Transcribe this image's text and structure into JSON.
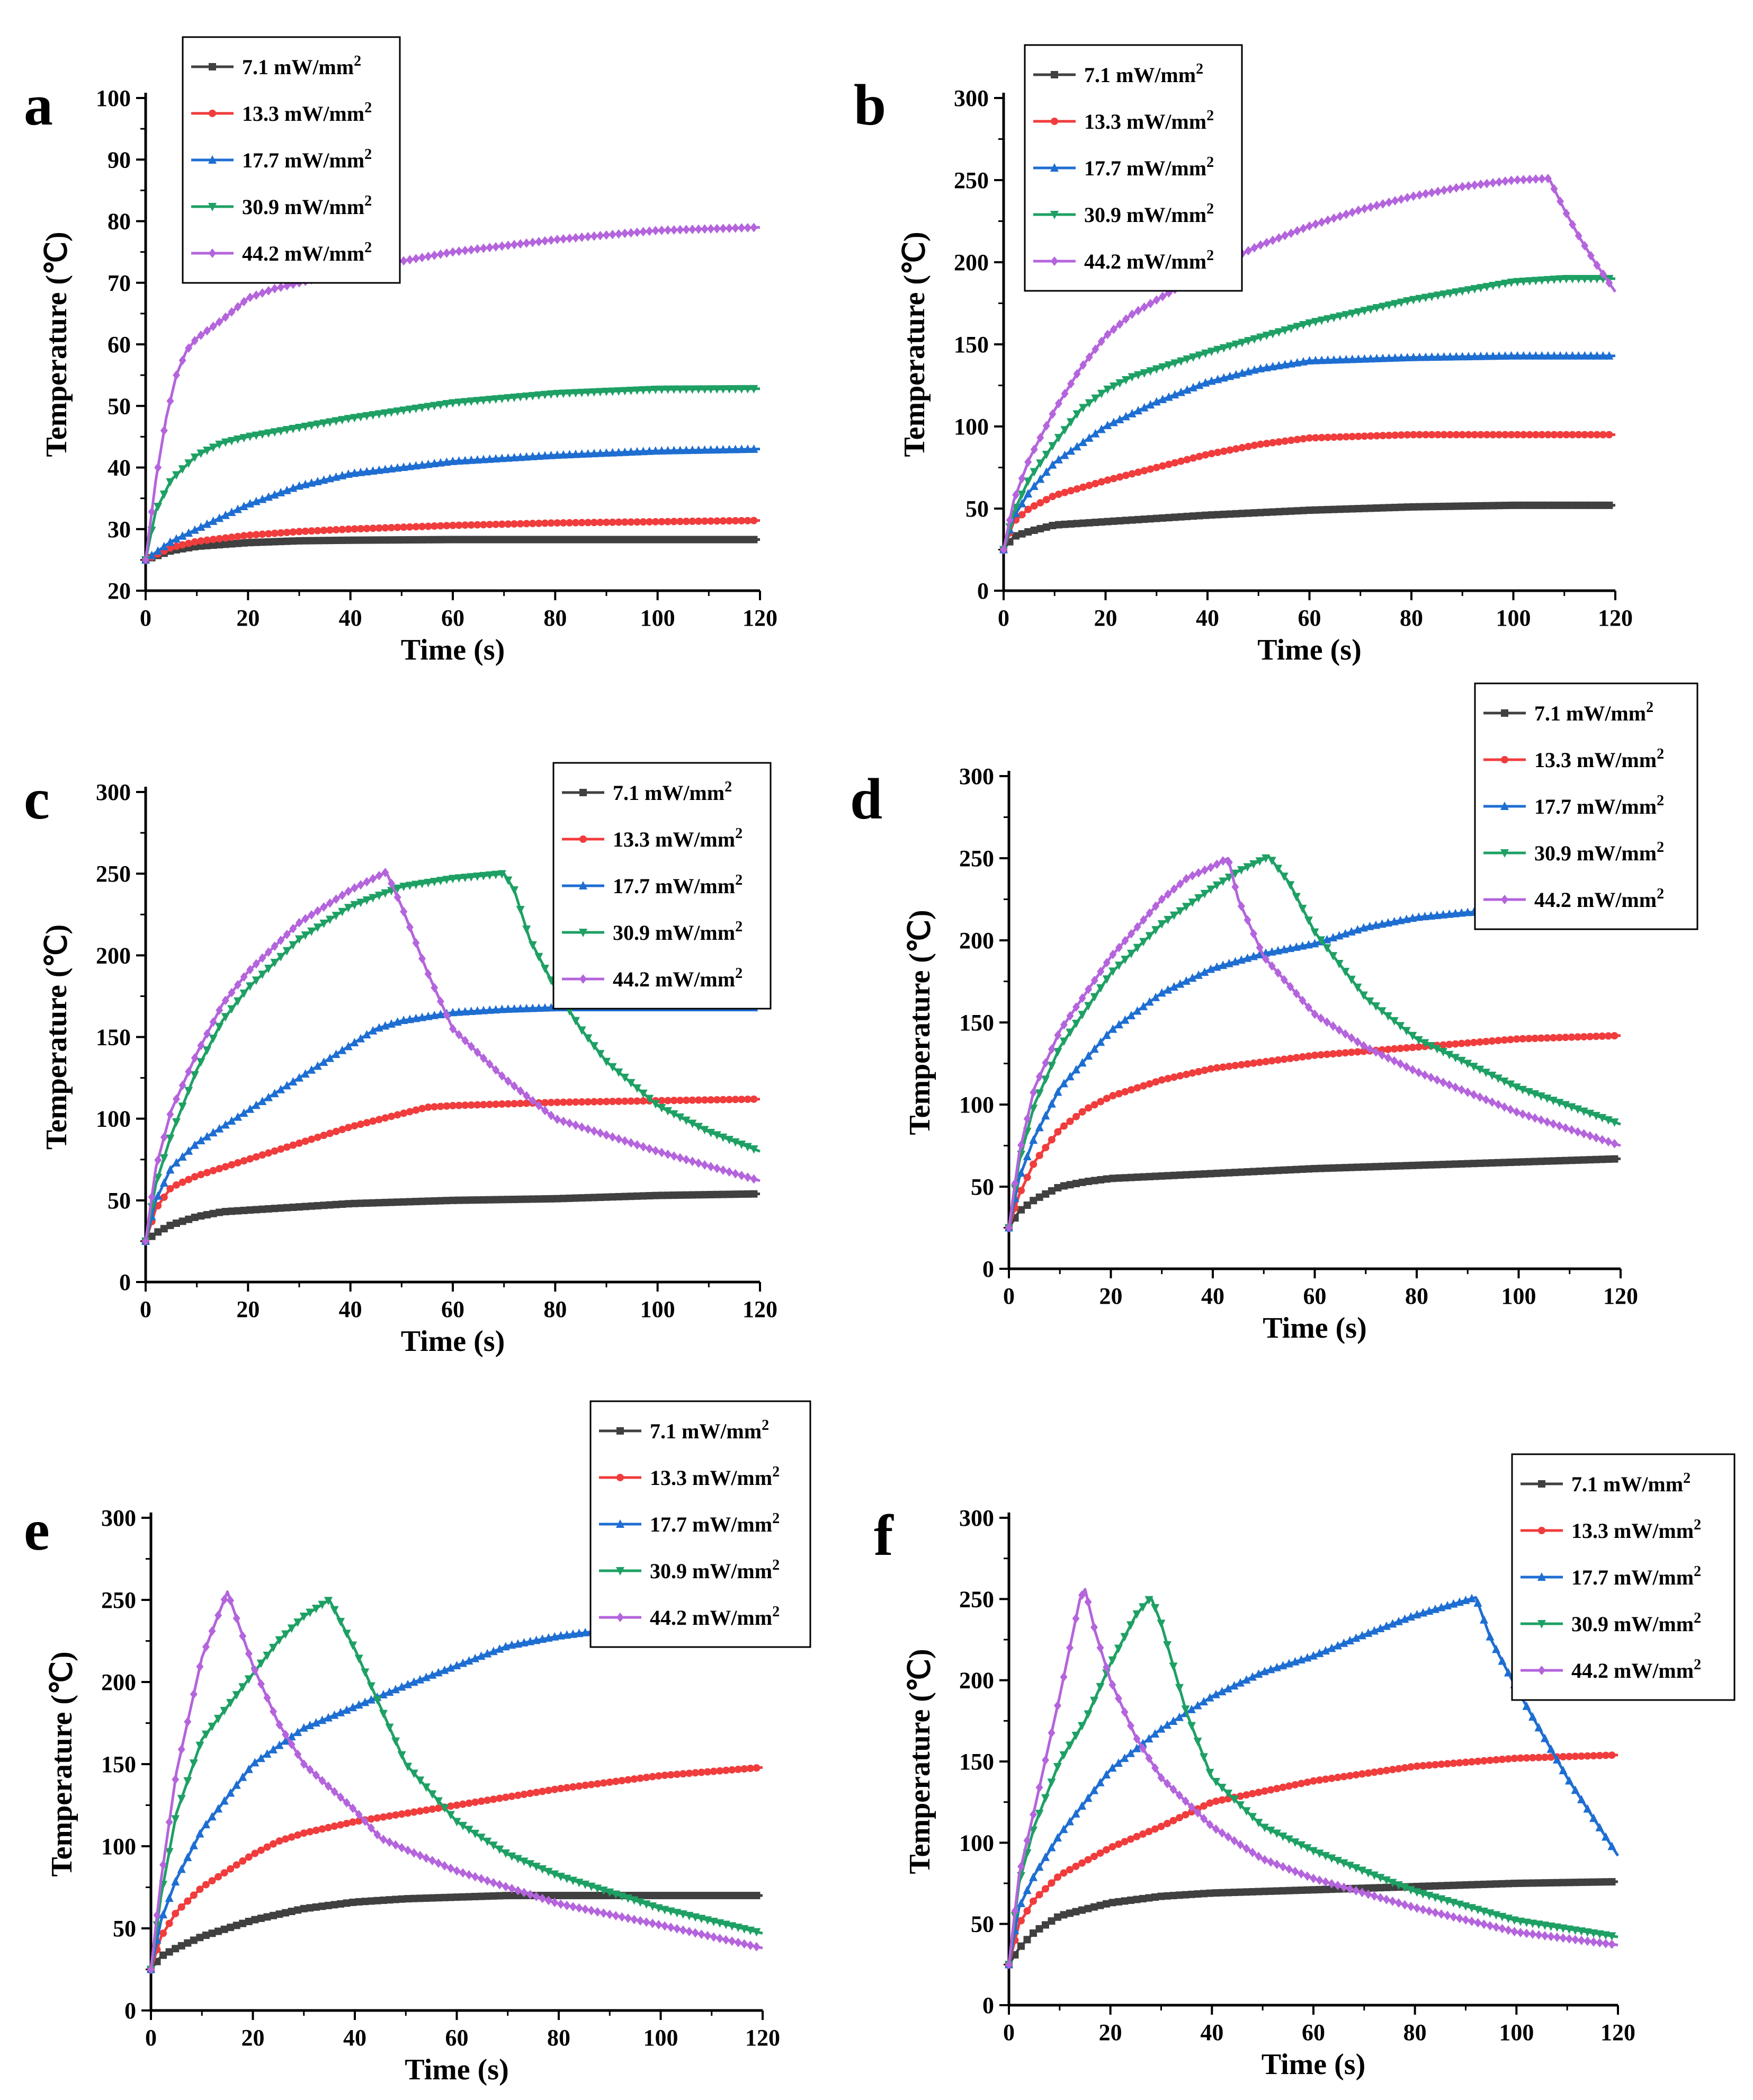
{
  "figure": {
    "x_label": "Time (s)",
    "y_label": "Temperature (℃)",
    "series_names": [
      "7.1 mW/mm",
      "13.3 mW/mm",
      "17.7 mW/mm",
      "30.9 mW/mm",
      "44.2 mW/mm"
    ],
    "series_superscript": "2",
    "series_colors": [
      "#404040",
      "#f03c3c",
      "#1e6ed2",
      "#1ea064",
      "#b464dc"
    ],
    "series_markers": [
      "square",
      "circle",
      "triangle-up",
      "triangle-down",
      "diamond"
    ]
  },
  "chart_data": [
    {
      "panel": "a",
      "type": "line",
      "xlim": [
        0,
        120
      ],
      "ylim": [
        20,
        100
      ],
      "xticks": [
        0,
        20,
        40,
        60,
        80,
        100,
        120
      ],
      "yticks": [
        20,
        30,
        40,
        50,
        60,
        70,
        80,
        90,
        100
      ],
      "legend_position": "top-left",
      "series": [
        {
          "name": "7.1 mW/mm2",
          "x": [
            0,
            5,
            10,
            20,
            30,
            40,
            60,
            80,
            100,
            120
          ],
          "y": [
            25,
            26.5,
            27.2,
            27.8,
            28.1,
            28.2,
            28.3,
            28.3,
            28.3,
            28.3
          ]
        },
        {
          "name": "13.3 mW/mm2",
          "x": [
            0,
            5,
            10,
            20,
            30,
            40,
            60,
            80,
            100,
            120
          ],
          "y": [
            25,
            27,
            28,
            29,
            29.6,
            30,
            30.6,
            31,
            31.2,
            31.4
          ]
        },
        {
          "name": "17.7 mW/mm2",
          "x": [
            0,
            5,
            10,
            20,
            30,
            40,
            60,
            80,
            100,
            120
          ],
          "y": [
            25,
            28,
            30,
            34,
            37,
            39,
            41,
            42,
            42.7,
            43
          ]
        },
        {
          "name": "30.9 mW/mm2",
          "x": [
            0,
            2,
            5,
            10,
            15,
            20,
            30,
            40,
            60,
            80,
            100,
            120
          ],
          "y": [
            25,
            33,
            38,
            42,
            44,
            45,
            46.5,
            48,
            50.5,
            52,
            52.7,
            52.8
          ]
        },
        {
          "name": "44.2 mW/mm2",
          "x": [
            0,
            2,
            4,
            6,
            8,
            10,
            15,
            20,
            25,
            30,
            40,
            60,
            80,
            100,
            120
          ],
          "y": [
            25,
            38,
            48,
            55,
            59,
            61,
            64,
            67.5,
            69,
            70,
            72,
            75,
            77,
            78.5,
            79
          ]
        }
      ]
    },
    {
      "panel": "b",
      "type": "line",
      "xlim": [
        0,
        120
      ],
      "ylim": [
        0,
        300
      ],
      "xticks": [
        0,
        20,
        40,
        60,
        80,
        100,
        120
      ],
      "yticks": [
        0,
        50,
        100,
        150,
        200,
        250,
        300
      ],
      "legend_position": "top-left",
      "series": [
        {
          "name": "7.1 mW/mm2",
          "x": [
            0,
            2,
            5,
            10,
            20,
            40,
            60,
            80,
            100,
            120
          ],
          "y": [
            25,
            33,
            36,
            40,
            42,
            46,
            49,
            51,
            52,
            52
          ]
        },
        {
          "name": "13.3 mW/mm2",
          "x": [
            0,
            2,
            5,
            10,
            20,
            30,
            40,
            50,
            60,
            80,
            100,
            120
          ],
          "y": [
            25,
            42,
            50,
            58,
            67,
            75,
            83,
            89,
            93,
            95,
            95,
            95
          ]
        },
        {
          "name": "17.7 mW/mm2",
          "x": [
            0,
            2,
            5,
            10,
            20,
            30,
            40,
            50,
            60,
            80,
            100,
            120
          ],
          "y": [
            25,
            45,
            60,
            78,
            100,
            115,
            127,
            135,
            140,
            142,
            143,
            143
          ]
        },
        {
          "name": "30.9 mW/mm2",
          "x": [
            0,
            2,
            5,
            10,
            15,
            20,
            25,
            30,
            40,
            60,
            80,
            100,
            110,
            120
          ],
          "y": [
            25,
            48,
            68,
            90,
            110,
            122,
            130,
            135,
            145,
            163,
            177,
            188,
            190,
            190
          ]
        },
        {
          "name": "44.2 mW/mm2",
          "x": [
            0,
            2,
            5,
            10,
            15,
            20,
            25,
            30,
            40,
            50,
            60,
            70,
            80,
            90,
            100,
            107,
            110,
            113,
            116,
            120
          ],
          "y": [
            25,
            55,
            80,
            110,
            135,
            155,
            168,
            177,
            195,
            210,
            222,
            232,
            240,
            246,
            250,
            251,
            232,
            215,
            200,
            182
          ]
        }
      ]
    },
    {
      "panel": "c",
      "type": "line",
      "xlim": [
        0,
        120
      ],
      "ylim": [
        0,
        300
      ],
      "xticks": [
        0,
        20,
        40,
        60,
        80,
        100,
        120
      ],
      "yticks": [
        0,
        50,
        100,
        150,
        200,
        250,
        300
      ],
      "legend_position": "top-right",
      "series": [
        {
          "name": "7.1 mW/mm2",
          "x": [
            0,
            2,
            5,
            10,
            15,
            20,
            40,
            60,
            80,
            100,
            120
          ],
          "y": [
            25,
            30,
            35,
            40,
            43,
            44,
            48,
            50,
            51,
            53,
            54
          ]
        },
        {
          "name": "13.3 mW/mm2",
          "x": [
            0,
            2,
            5,
            10,
            20,
            30,
            40,
            50,
            55,
            60,
            80,
            100,
            120
          ],
          "y": [
            25,
            45,
            58,
            65,
            75,
            85,
            95,
            103,
            107,
            108,
            110,
            111,
            112
          ]
        },
        {
          "name": "17.7 mW/mm2",
          "x": [
            0,
            2,
            5,
            10,
            20,
            30,
            40,
            45,
            50,
            60,
            70,
            80,
            100,
            120
          ],
          "y": [
            25,
            50,
            70,
            85,
            105,
            125,
            145,
            155,
            160,
            165,
            167,
            168,
            168,
            168
          ]
        },
        {
          "name": "30.9 mW/mm2",
          "x": [
            0,
            2,
            5,
            10,
            15,
            20,
            30,
            40,
            50,
            60,
            70,
            72,
            75,
            80,
            85,
            90,
            100,
            110,
            120
          ],
          "y": [
            25,
            60,
            90,
            130,
            160,
            180,
            210,
            230,
            242,
            247,
            250,
            240,
            210,
            180,
            155,
            135,
            108,
            92,
            80
          ]
        },
        {
          "name": "44.2 mW/mm2",
          "x": [
            0,
            2,
            5,
            10,
            15,
            20,
            30,
            40,
            47,
            50,
            55,
            60,
            70,
            80,
            100,
            120
          ],
          "y": [
            25,
            70,
            105,
            140,
            170,
            190,
            220,
            240,
            251,
            230,
            190,
            155,
            125,
            100,
            80,
            62
          ]
        }
      ]
    },
    {
      "panel": "d",
      "type": "line",
      "xlim": [
        0,
        120
      ],
      "ylim": [
        0,
        300
      ],
      "xticks": [
        0,
        20,
        40,
        60,
        80,
        100,
        120
      ],
      "yticks": [
        0,
        50,
        100,
        150,
        200,
        250,
        300
      ],
      "legend_position": "top-right",
      "series": [
        {
          "name": "7.1 mW/mm2",
          "x": [
            0,
            2,
            5,
            10,
            15,
            20,
            40,
            60,
            80,
            100,
            120
          ],
          "y": [
            25,
            35,
            42,
            50,
            53,
            55,
            58,
            61,
            63,
            65,
            67
          ]
        },
        {
          "name": "13.3 mW/mm2",
          "x": [
            0,
            2,
            5,
            10,
            15,
            20,
            30,
            40,
            60,
            80,
            100,
            120
          ],
          "y": [
            25,
            45,
            65,
            85,
            97,
            105,
            115,
            122,
            130,
            135,
            140,
            142
          ]
        },
        {
          "name": "17.7 mW/mm2",
          "x": [
            0,
            2,
            5,
            10,
            20,
            30,
            40,
            50,
            60,
            70,
            80,
            90,
            100,
            120
          ],
          "y": [
            25,
            55,
            80,
            110,
            145,
            168,
            183,
            192,
            198,
            208,
            214,
            217,
            218,
            218
          ]
        },
        {
          "name": "30.9 mW/mm2",
          "x": [
            0,
            2,
            5,
            10,
            20,
            30,
            40,
            45,
            51,
            55,
            60,
            70,
            80,
            100,
            120
          ],
          "y": [
            25,
            65,
            100,
            135,
            180,
            210,
            232,
            242,
            251,
            235,
            205,
            165,
            140,
            110,
            88
          ]
        },
        {
          "name": "44.2 mW/mm2",
          "x": [
            0,
            2,
            5,
            10,
            20,
            30,
            35,
            40,
            43,
            45,
            50,
            60,
            70,
            80,
            100,
            120
          ],
          "y": [
            25,
            70,
            110,
            145,
            190,
            225,
            238,
            245,
            250,
            225,
            190,
            155,
            135,
            120,
            95,
            75
          ]
        }
      ]
    },
    {
      "panel": "e",
      "type": "line",
      "xlim": [
        0,
        120
      ],
      "ylim": [
        0,
        300
      ],
      "xticks": [
        0,
        20,
        40,
        60,
        80,
        100,
        120
      ],
      "yticks": [
        0,
        50,
        100,
        150,
        200,
        250,
        300
      ],
      "legend_position": "top-right",
      "series": [
        {
          "name": "7.1 mW/mm2",
          "x": [
            0,
            2,
            5,
            10,
            20,
            30,
            40,
            50,
            60,
            70,
            80,
            100,
            120
          ],
          "y": [
            25,
            33,
            38,
            45,
            55,
            62,
            66,
            68,
            69,
            70,
            70,
            70,
            70
          ]
        },
        {
          "name": "13.3 mW/mm2",
          "x": [
            0,
            2,
            5,
            10,
            20,
            25,
            30,
            40,
            60,
            80,
            100,
            120
          ],
          "y": [
            25,
            45,
            60,
            75,
            95,
            103,
            108,
            115,
            125,
            135,
            143,
            148
          ]
        },
        {
          "name": "17.7 mW/mm2",
          "x": [
            0,
            2,
            5,
            10,
            20,
            30,
            40,
            50,
            60,
            70,
            80,
            90,
            100,
            120
          ],
          "y": [
            25,
            55,
            80,
            110,
            150,
            172,
            185,
            198,
            210,
            222,
            228,
            232,
            233,
            233
          ]
        },
        {
          "name": "30.9 mW/mm2",
          "x": [
            0,
            2,
            5,
            10,
            15,
            20,
            25,
            30,
            35,
            40,
            45,
            50,
            60,
            70,
            80,
            100,
            120
          ],
          "y": [
            25,
            70,
            120,
            165,
            185,
            205,
            225,
            240,
            250,
            220,
            185,
            150,
            115,
            95,
            82,
            62,
            47
          ]
        },
        {
          "name": "44.2 mW/mm2",
          "x": [
            0,
            2,
            5,
            10,
            15,
            20,
            25,
            30,
            40,
            45,
            50,
            60,
            70,
            80,
            100,
            120
          ],
          "y": [
            25,
            80,
            145,
            215,
            255,
            210,
            175,
            150,
            122,
            105,
            98,
            85,
            75,
            65,
            52,
            38
          ]
        }
      ]
    },
    {
      "panel": "f",
      "type": "line",
      "xlim": [
        0,
        120
      ],
      "ylim": [
        0,
        300
      ],
      "xticks": [
        0,
        20,
        40,
        60,
        80,
        100,
        120
      ],
      "yticks": [
        0,
        50,
        100,
        150,
        200,
        250,
        300
      ],
      "legend_position": "top-right",
      "series": [
        {
          "name": "7.1 mW/mm2",
          "x": [
            0,
            2,
            5,
            10,
            20,
            30,
            40,
            60,
            80,
            100,
            120
          ],
          "y": [
            25,
            35,
            45,
            55,
            63,
            67,
            69,
            71,
            73,
            75,
            76
          ]
        },
        {
          "name": "13.3 mW/mm2",
          "x": [
            0,
            2,
            5,
            10,
            20,
            30,
            40,
            60,
            80,
            100,
            120
          ],
          "y": [
            25,
            50,
            65,
            80,
            97,
            110,
            125,
            138,
            147,
            152,
            154
          ]
        },
        {
          "name": "17.7 mW/mm2",
          "x": [
            0,
            2,
            5,
            10,
            20,
            30,
            40,
            50,
            60,
            70,
            80,
            92,
            95,
            100,
            110,
            120
          ],
          "y": [
            25,
            60,
            80,
            105,
            145,
            170,
            190,
            205,
            215,
            228,
            240,
            251,
            225,
            195,
            140,
            92
          ]
        },
        {
          "name": "30.9 mW/mm2",
          "x": [
            0,
            2,
            5,
            10,
            15,
            20,
            25,
            28,
            30,
            35,
            40,
            50,
            60,
            80,
            100,
            120
          ],
          "y": [
            25,
            75,
            110,
            150,
            175,
            210,
            240,
            251,
            235,
            180,
            140,
            110,
            95,
            70,
            52,
            42
          ]
        },
        {
          "name": "44.2 mW/mm2",
          "x": [
            0,
            2,
            5,
            10,
            14,
            15,
            17,
            20,
            25,
            30,
            40,
            50,
            60,
            80,
            100,
            120
          ],
          "y": [
            25,
            80,
            120,
            190,
            250,
            256,
            230,
            200,
            165,
            140,
            110,
            90,
            78,
            60,
            45,
            37
          ]
        }
      ]
    }
  ]
}
